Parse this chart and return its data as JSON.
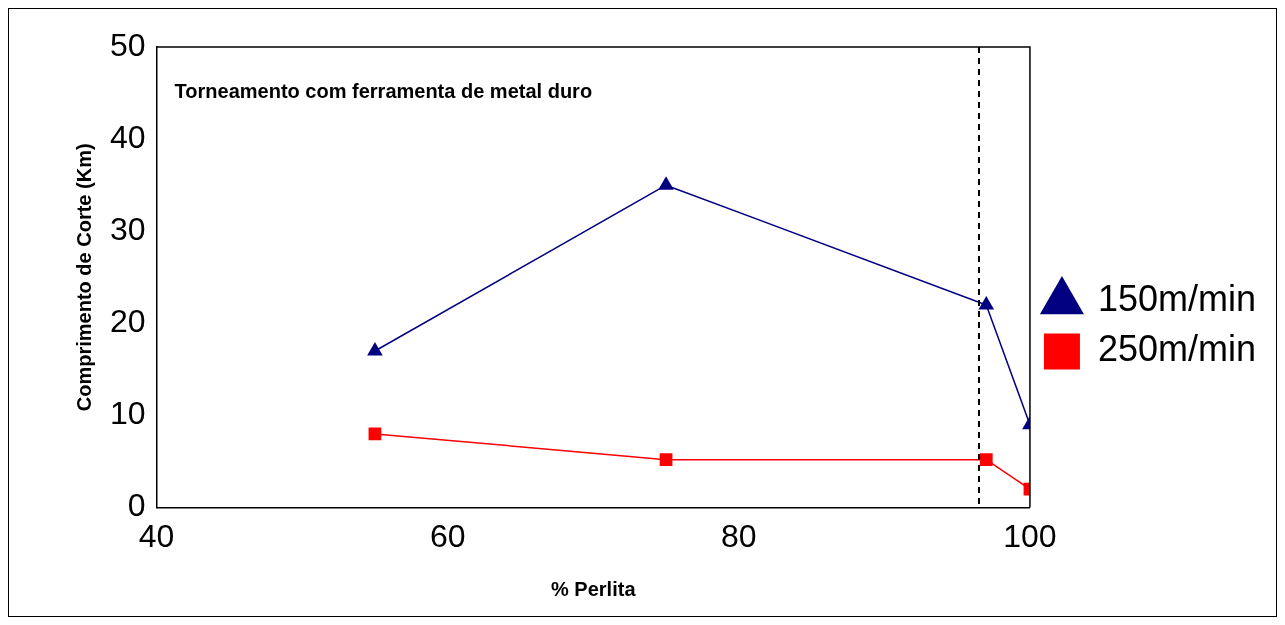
{
  "chart_data": {
    "type": "line",
    "xlabel": "% Perlita",
    "ylabel": "Comprimento de Corte (Km)",
    "series": [
      {
        "name": "150m/min",
        "color": "#000080",
        "marker": "triangle",
        "x": [
          55,
          75,
          97,
          100
        ],
        "values": [
          17,
          35,
          22,
          9
        ]
      },
      {
        "name": "250m/min",
        "color": "#ff0000",
        "marker": "square",
        "x": [
          55,
          75,
          97,
          100
        ],
        "values": [
          8,
          5.2,
          5.2,
          2
        ]
      }
    ],
    "xlim": [
      40,
      100
    ],
    "xticks": [
      40,
      60,
      80,
      100
    ],
    "ylim": [
      0,
      50
    ],
    "yticks": [
      0,
      10,
      20,
      30,
      40,
      50
    ],
    "ref_lines": [
      {
        "axis": "x",
        "value": 96.5,
        "color": "#000000",
        "line_style": "dashed"
      }
    ],
    "annotations": [
      "Torneamento com ferramenta de metal duro"
    ],
    "grid": false,
    "legend": "right"
  }
}
